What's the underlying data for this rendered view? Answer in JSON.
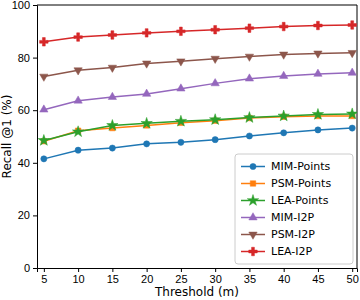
{
  "chart_data": {
    "type": "line",
    "x_label": "Threshold (m)",
    "y_label": "Recall @1 (%)",
    "x": [
      5,
      10,
      15,
      20,
      25,
      30,
      35,
      40,
      45,
      50
    ],
    "xlim": [
      4,
      50.7
    ],
    "xticks": [
      5,
      10,
      15,
      20,
      25,
      30,
      35,
      40,
      45,
      50
    ],
    "ylim": [
      0,
      100
    ],
    "yticks": [
      0,
      20,
      40,
      60,
      80,
      100
    ],
    "grid": false,
    "legend": "lower right",
    "series": [
      {
        "name": "MIM-Points",
        "color": "#1f77b4",
        "marker": "circle",
        "values": [
          41.5,
          44.8,
          45.6,
          47.2,
          47.8,
          48.8,
          50.2,
          51.4,
          52.5,
          53.2
        ]
      },
      {
        "name": "PSM-Points",
        "color": "#ff7f0e",
        "marker": "square",
        "values": [
          48.2,
          52.2,
          53.2,
          54.2,
          55.2,
          56.0,
          57.0,
          57.5,
          57.8,
          57.8
        ]
      },
      {
        "name": "LEA-Points",
        "color": "#2ca02c",
        "marker": "star",
        "values": [
          48.5,
          51.8,
          54.2,
          55.0,
          55.8,
          56.4,
          57.2,
          57.8,
          58.4,
          58.6
        ]
      },
      {
        "name": "MIM-I2P",
        "color": "#9467bd",
        "marker": "triangle-up",
        "values": [
          60.2,
          63.6,
          65.0,
          66.2,
          68.2,
          70.2,
          72.0,
          73.0,
          73.8,
          74.2
        ]
      },
      {
        "name": "PSM-I2P",
        "color": "#8c564b",
        "marker": "triangle-down",
        "values": [
          72.8,
          75.2,
          76.2,
          77.8,
          78.6,
          79.6,
          80.4,
          81.2,
          81.6,
          81.8
        ]
      },
      {
        "name": "LEA-I2P",
        "color": "#d62728",
        "marker": "plus",
        "values": [
          86.0,
          87.8,
          88.6,
          89.4,
          90.0,
          90.6,
          91.2,
          91.8,
          92.2,
          92.4
        ]
      }
    ]
  }
}
